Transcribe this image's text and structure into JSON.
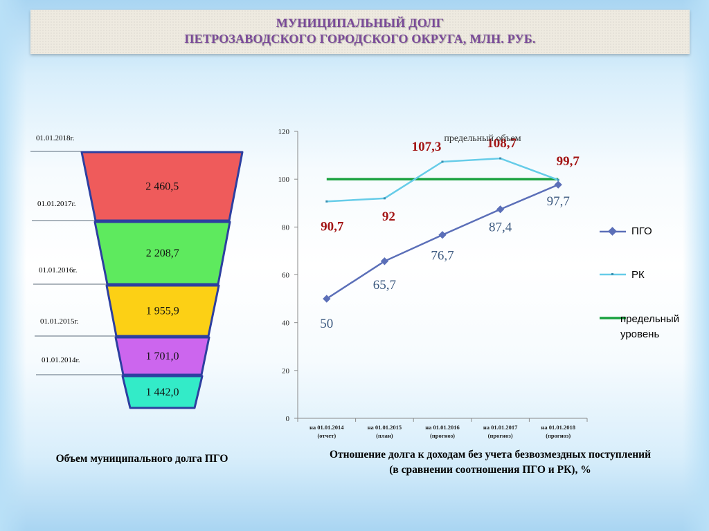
{
  "title": {
    "line1": "МУНИЦИПАЛЬНЫЙ ДОЛГ",
    "line2": "ПЕТРОЗАВОДСКОГО ГОРОДСКОГО ОКРУГА, МЛН. РУБ."
  },
  "funnel": {
    "caption": "Объем муниципального долга ПГО",
    "levels": [
      {
        "date": "01.01.2018г.",
        "value": "2 460,5",
        "color": "#ef5b5b"
      },
      {
        "date": "01.01.2017г.",
        "value": "2 208,7",
        "color": "#5eea5e"
      },
      {
        "date": "01.01.2016г.",
        "value": "1 955,9",
        "color": "#fcd015"
      },
      {
        "date": "01.01.2015г.",
        "value": "1 701,0",
        "color": "#cc66ee"
      },
      {
        "date": "01.01.2014г.",
        "value": "1 442,0",
        "color": "#33ebc8"
      }
    ]
  },
  "chart_data": {
    "type": "line",
    "title": "",
    "caption_line1": "Отношение долга к доходам без учета безвозмездных поступлений",
    "caption_line2": "(в сравнении соотношения ПГО и РК), %",
    "ylim": [
      0,
      120
    ],
    "yticks": [
      0,
      20,
      40,
      60,
      80,
      100,
      120
    ],
    "categories": [
      {
        "line1": "на 01.01.2014",
        "line2": "(отчет)"
      },
      {
        "line1": "на 01.01.2015",
        "line2": "(план)"
      },
      {
        "line1": "на 01.01.2016",
        "line2": "(прогноз)"
      },
      {
        "line1": "на 01.01.2017",
        "line2": "(прогноз)"
      },
      {
        "line1": "на 01.01.2018",
        "line2": "(прогноз)"
      }
    ],
    "series": [
      {
        "name": "ПГО",
        "values": [
          50,
          65.7,
          76.7,
          87.4,
          97.7
        ],
        "labels": [
          "50",
          "65,7",
          "76,7",
          "87,4",
          "97,7"
        ],
        "color": "#5b6fb8",
        "label_color": "#3d5a80"
      },
      {
        "name": "РК",
        "values": [
          90.7,
          92,
          107.3,
          108.7,
          99.7
        ],
        "labels": [
          "90,7",
          "92",
          "107,3",
          "108,7",
          "99,7"
        ],
        "color": "#66cce8",
        "label_color": "#a31515"
      },
      {
        "name": "предельный уровень",
        "values": [
          100,
          100,
          100,
          100,
          100
        ],
        "color": "#19a13e"
      }
    ],
    "annotation": "предельный объем",
    "legend": [
      {
        "label": "ПГО"
      },
      {
        "label": "РК"
      },
      {
        "line1": "предельный",
        "line2": "уровень"
      }
    ]
  }
}
